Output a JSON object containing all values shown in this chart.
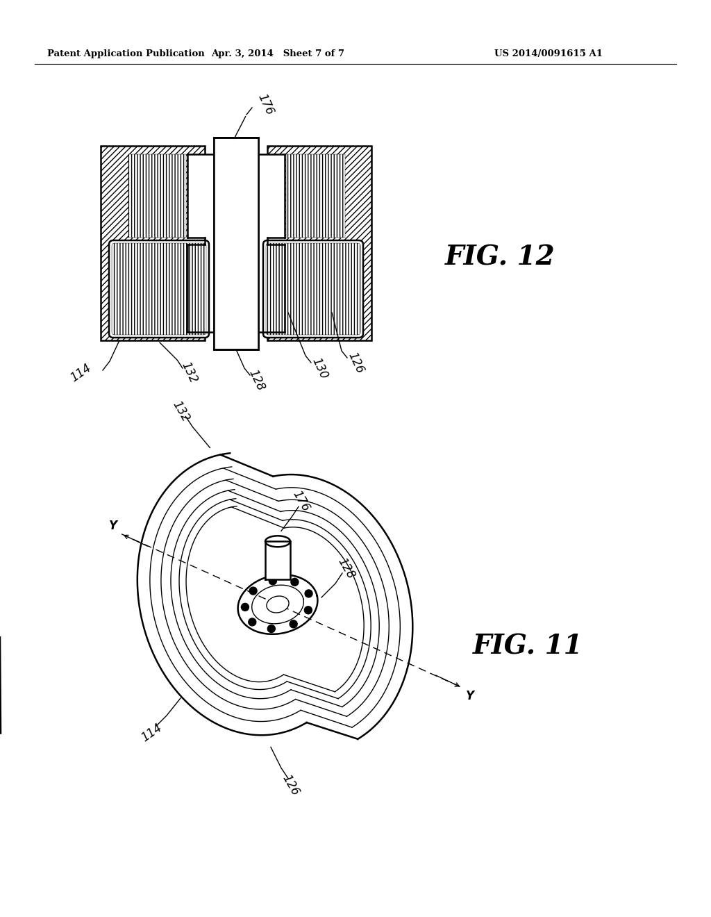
{
  "bg_color": "#ffffff",
  "header_left": "Patent Application Publication",
  "header_mid": "Apr. 3, 2014   Sheet 7 of 7",
  "header_right": "US 2014/0091615 A1",
  "fig12_label": "FIG. 12",
  "fig11_label": "FIG. 11"
}
